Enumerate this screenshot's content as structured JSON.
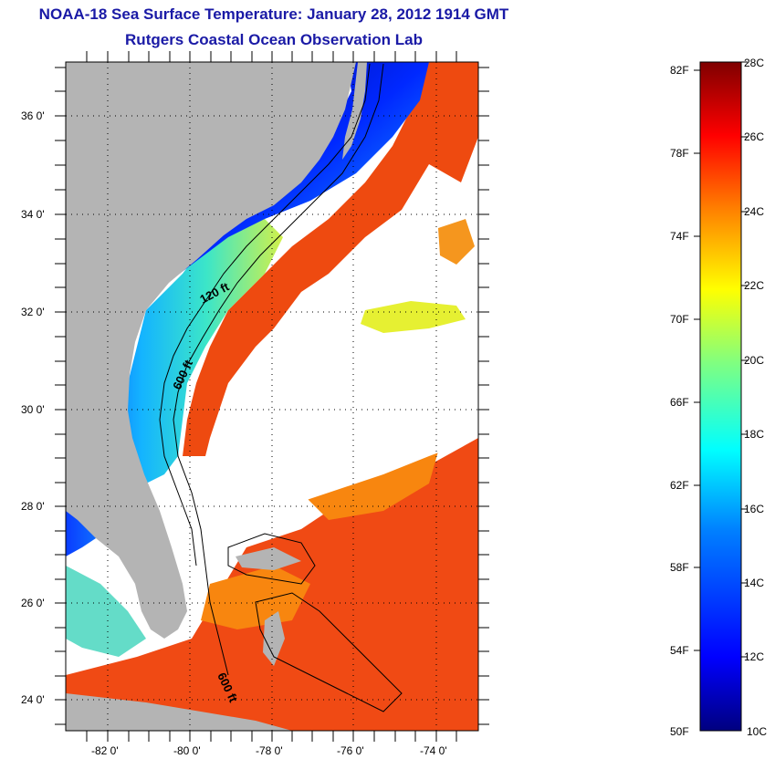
{
  "header": {
    "title": "NOAA-18 Sea Surface Temperature:  January 28, 2012 1914 GMT",
    "subtitle": "Rutgers Coastal Ocean Observation Lab"
  },
  "map": {
    "lon_ticks": [
      "-82 0'",
      "-80 0'",
      "-78 0'",
      "-76 0'",
      "-74 0'"
    ],
    "lat_ticks": [
      "36 0'",
      "34 0'",
      "32 0'",
      "30 0'",
      "28 0'",
      "26 0'",
      "24 0'"
    ],
    "contour_labels": [
      "120 ft",
      "600 ft",
      "600 ft"
    ],
    "colors": {
      "land": "#b4b4b4",
      "cloud": "#ffffff",
      "gulf_stream": "#ee4a10"
    }
  },
  "colorbar": {
    "fahrenheit_labels": [
      "82F",
      "78F",
      "74F",
      "70F",
      "66F",
      "62F",
      "58F",
      "54F",
      "50F"
    ],
    "celsius_labels": [
      "28C",
      "26C",
      "24C",
      "22C",
      "20C",
      "18C",
      "16C",
      "14C",
      "12C",
      "10C"
    ],
    "colors": [
      "#00007f",
      "#0000ff",
      "#007fff",
      "#00ffff",
      "#7fff7f",
      "#ffff00",
      "#ff7f00",
      "#ff0000",
      "#7f0000"
    ]
  }
}
